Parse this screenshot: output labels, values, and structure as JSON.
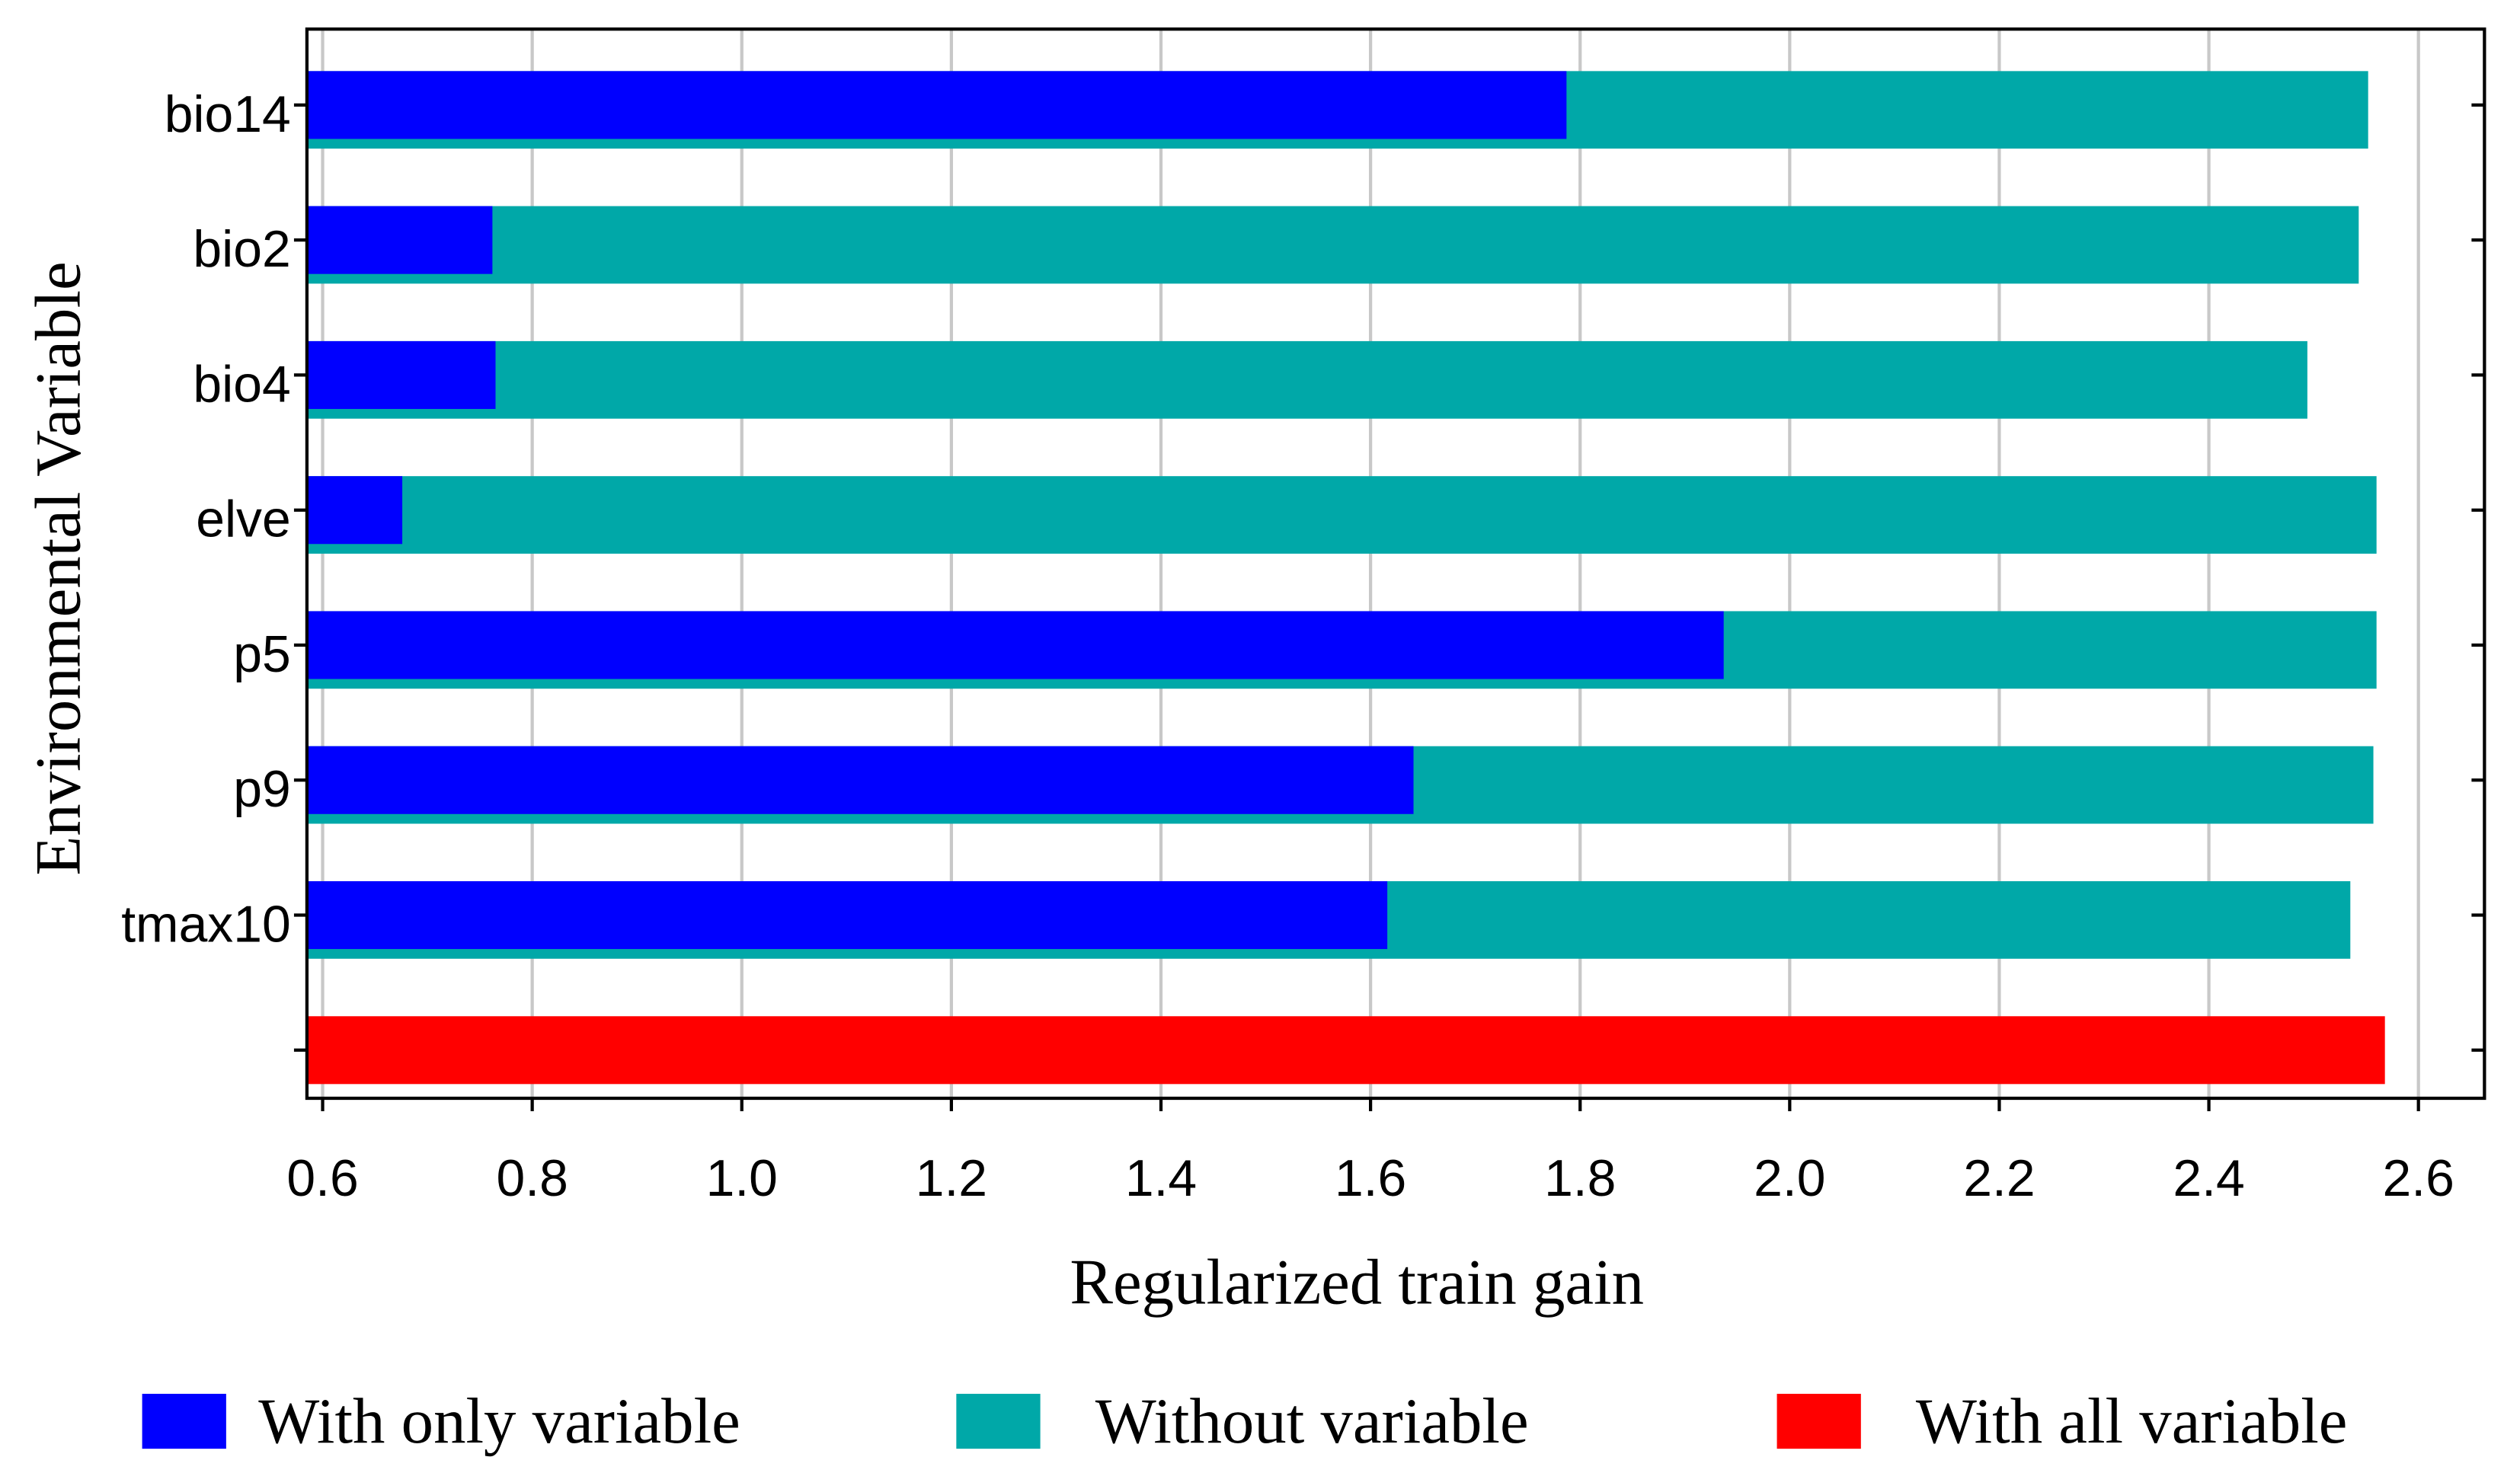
{
  "chart_data": {
    "type": "bar",
    "orientation": "horizontal",
    "xlabel": "Regularized train gain",
    "ylabel": "Environmental Variable",
    "categories": [
      "bio14",
      "bio2",
      "bio4",
      "elve",
      "p5",
      "p9",
      "tmax10",
      null
    ],
    "series": [
      {
        "name": "With only variable",
        "color": "#0000ff",
        "values": [
          1.787,
          0.762,
          0.765,
          0.676,
          1.937,
          1.641,
          1.616,
          null
        ]
      },
      {
        "name": "Without variable",
        "color": "#00a8a8",
        "values": [
          2.552,
          2.543,
          2.494,
          2.56,
          2.56,
          2.557,
          2.535,
          null
        ]
      },
      {
        "name": "With all variable",
        "color": "#ff0000",
        "values": [
          null,
          null,
          null,
          null,
          null,
          null,
          null,
          2.568
        ]
      }
    ],
    "xlim": [
      0.585,
      2.663
    ],
    "xticks": [
      0.6,
      0.8,
      {
        "value": 1,
        "label": "1.0"
      },
      1.2,
      1.4,
      1.6,
      1.8,
      {
        "value": 2,
        "label": "2.0"
      },
      2.2,
      2.4,
      2.6
    ],
    "grid": true,
    "legend": "bottom"
  }
}
